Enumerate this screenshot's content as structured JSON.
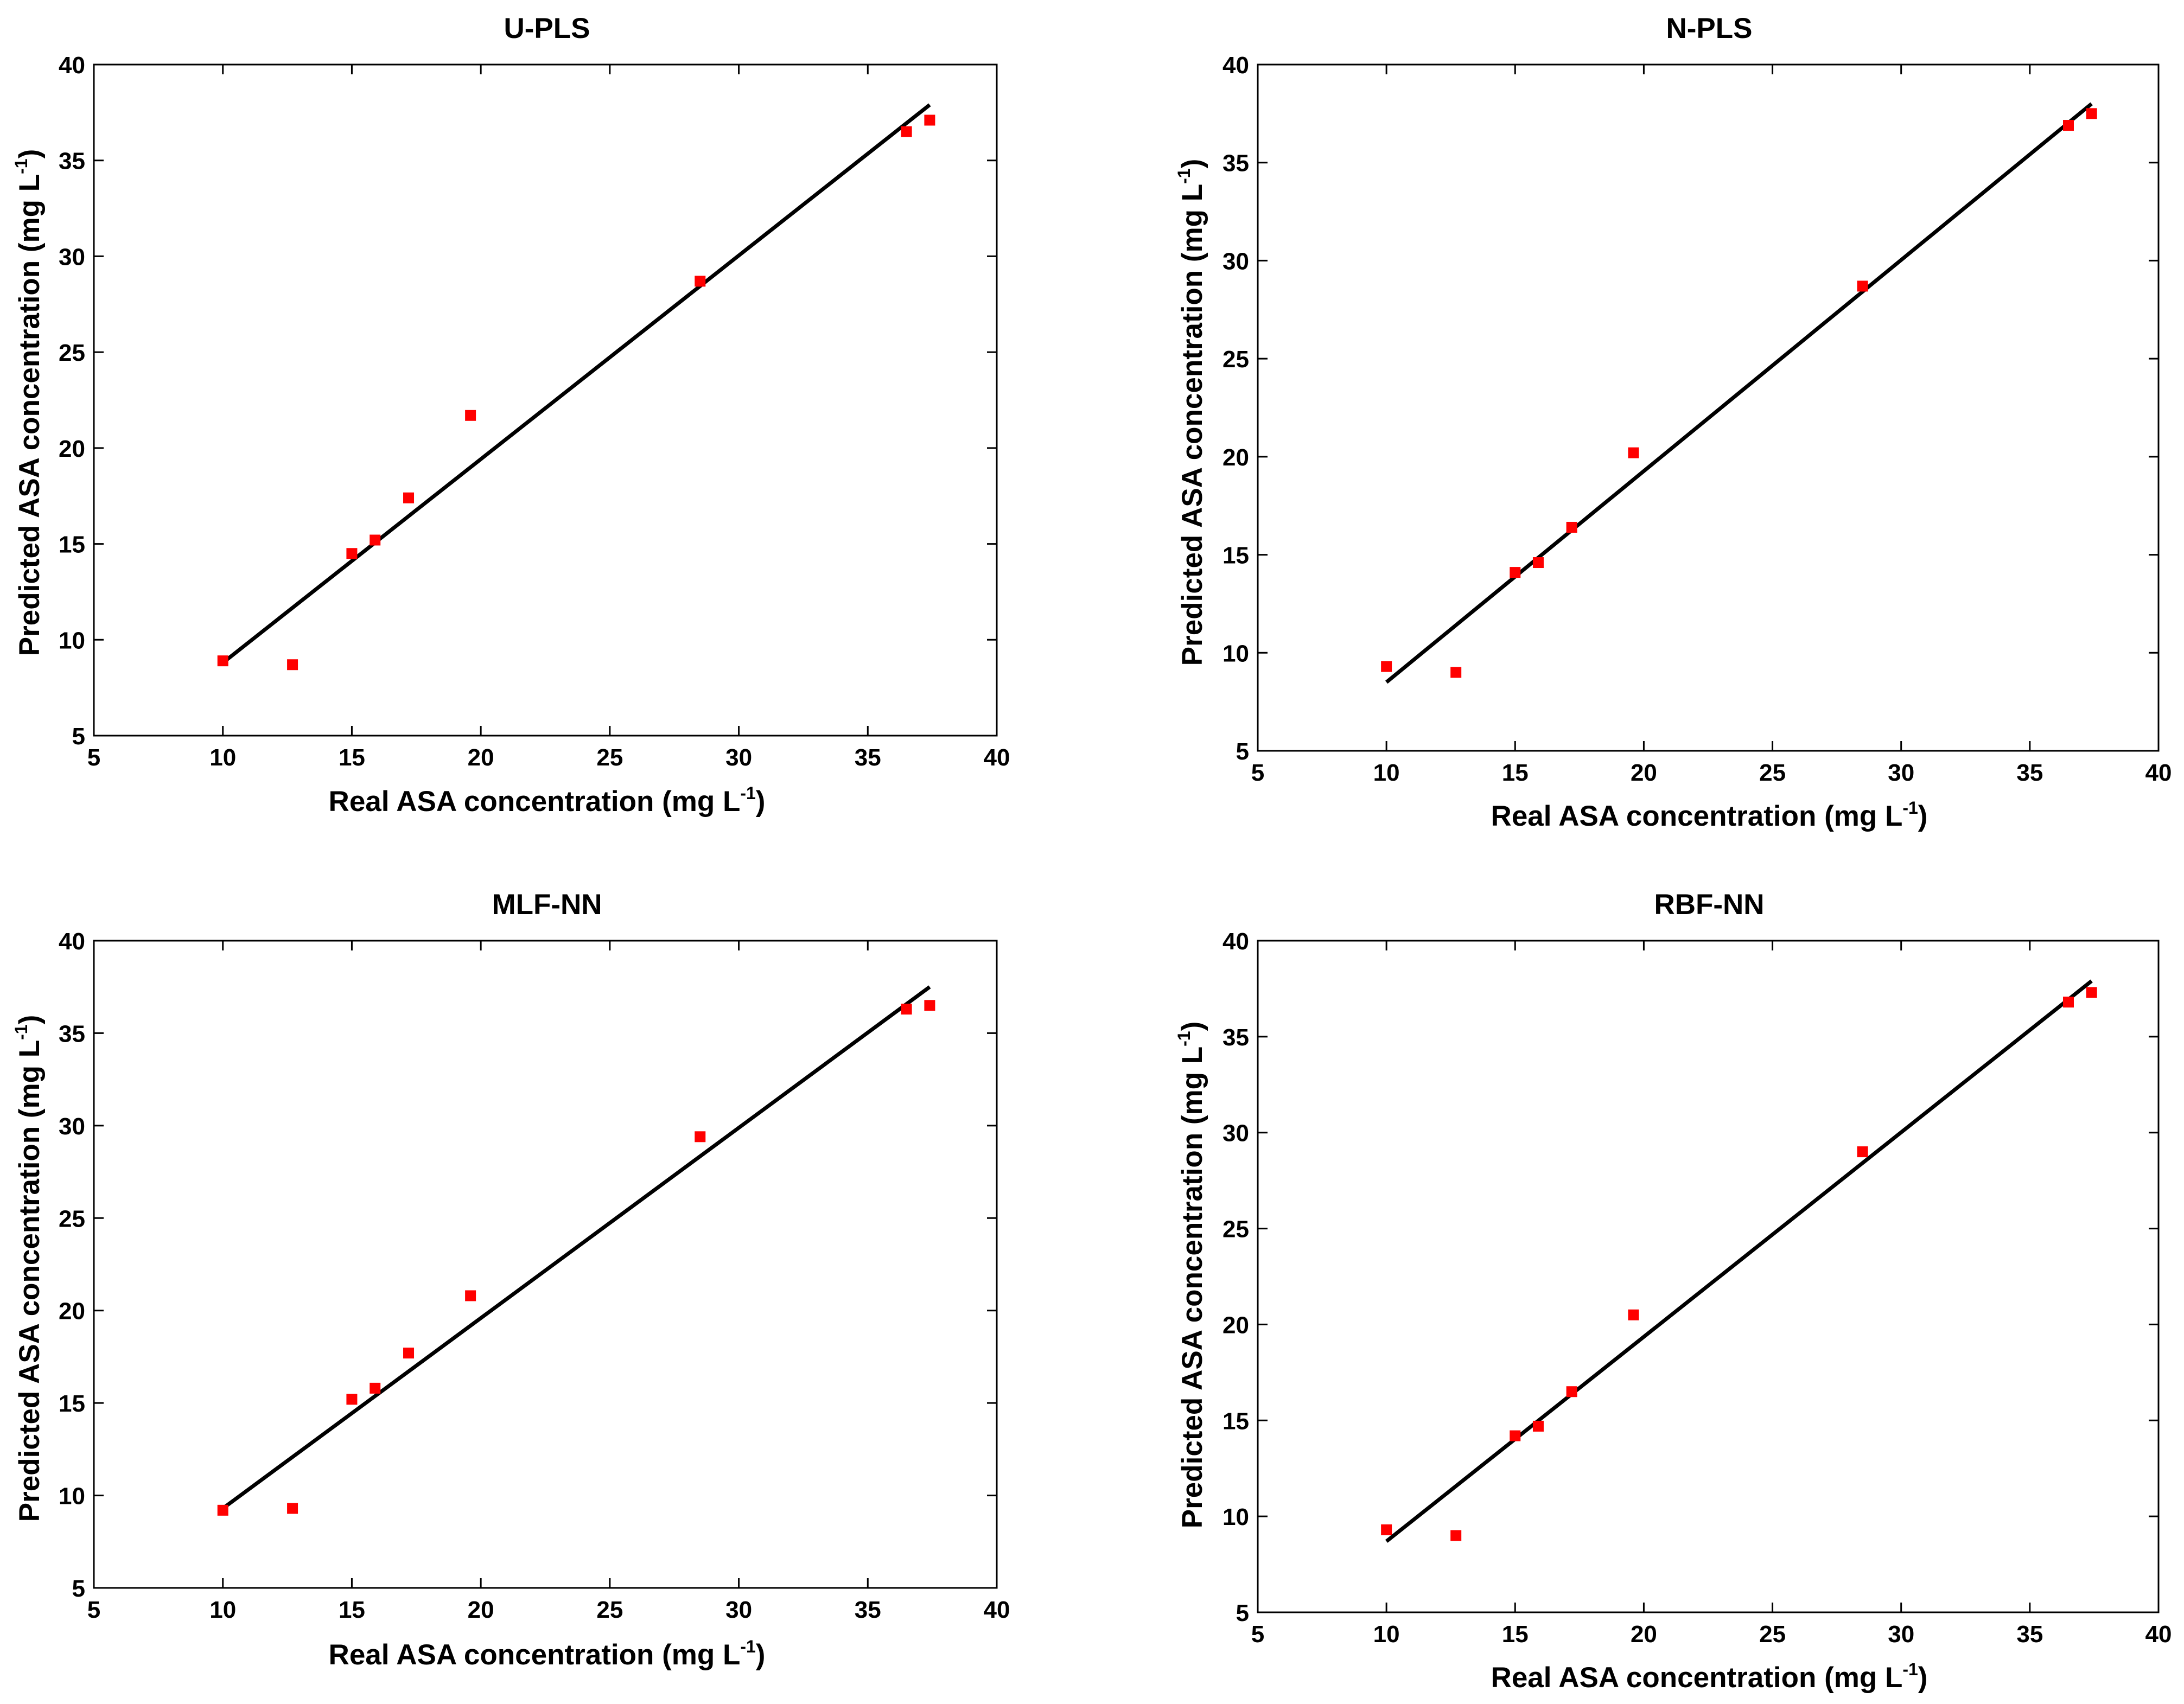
{
  "figure": {
    "colors": {
      "points": "#ff0000",
      "line": "#000000",
      "axes": "#000000",
      "background": "#ffffff"
    }
  },
  "chart_data": [
    {
      "type": "scatter",
      "title": "U-PLS",
      "xlabel": "Real ASA concentration (mg L",
      "xlabel_sup": "-1",
      "xlabel_end": ")",
      "ylabel": "Predicted ASA concentration (mg L",
      "ylabel_sup": "-1",
      "ylabel_end": ")",
      "xlim": [
        5,
        40
      ],
      "ylim": [
        5,
        40
      ],
      "xticks": [
        5,
        10,
        15,
        20,
        25,
        30,
        35,
        40
      ],
      "yticks": [
        5,
        10,
        15,
        20,
        25,
        30,
        35,
        40
      ],
      "points": {
        "x": [
          10.0,
          12.7,
          15.0,
          15.9,
          17.2,
          19.6,
          28.5,
          36.5,
          37.4
        ],
        "y": [
          8.9,
          8.7,
          14.5,
          15.2,
          17.4,
          21.7,
          28.7,
          36.5,
          37.1
        ]
      },
      "fit_line": {
        "x": [
          10.0,
          37.4
        ],
        "y": [
          8.8,
          37.9
        ]
      }
    },
    {
      "type": "scatter",
      "title": "N-PLS",
      "xlabel": "Real ASA concentration (mg L",
      "xlabel_sup": "-1",
      "xlabel_end": ")",
      "ylabel": "Predicted ASA concentration (mg L",
      "ylabel_sup": "-1",
      "ylabel_end": ")",
      "xlim": [
        5,
        40
      ],
      "ylim": [
        5,
        40
      ],
      "xticks": [
        5,
        10,
        15,
        20,
        25,
        30,
        35,
        40
      ],
      "yticks": [
        5,
        10,
        15,
        20,
        25,
        30,
        35,
        40
      ],
      "points": {
        "x": [
          10.0,
          12.7,
          15.0,
          15.9,
          17.2,
          19.6,
          28.5,
          36.5,
          37.4
        ],
        "y": [
          9.3,
          9.0,
          14.1,
          14.6,
          16.4,
          20.2,
          28.7,
          36.9,
          37.5
        ]
      },
      "fit_line": {
        "x": [
          10.0,
          37.4
        ],
        "y": [
          8.5,
          38.0
        ]
      }
    },
    {
      "type": "scatter",
      "title": "MLF-NN",
      "xlabel": "Real ASA concentration (mg L",
      "xlabel_sup": "-1",
      "xlabel_end": ")",
      "ylabel": "Predicted ASA concentration (mg L",
      "ylabel_sup": "-1",
      "ylabel_end": ")",
      "xlim": [
        5,
        40
      ],
      "ylim": [
        5,
        40
      ],
      "xticks": [
        5,
        10,
        15,
        20,
        25,
        30,
        35,
        40
      ],
      "yticks": [
        5,
        10,
        15,
        20,
        25,
        30,
        35,
        40
      ],
      "points": {
        "x": [
          10.0,
          12.7,
          15.0,
          15.9,
          17.2,
          19.6,
          28.5,
          36.5,
          37.4
        ],
        "y": [
          9.2,
          9.3,
          15.2,
          15.8,
          17.7,
          20.8,
          29.4,
          36.3,
          36.5
        ]
      },
      "fit_line": {
        "x": [
          10.0,
          37.4
        ],
        "y": [
          9.3,
          37.5
        ]
      }
    },
    {
      "type": "scatter",
      "title": "RBF-NN",
      "xlabel": "Real ASA concentration (mg L",
      "xlabel_sup": "-1",
      "xlabel_end": ")",
      "ylabel": "Predicted ASA concentration (mg L",
      "ylabel_sup": "-1",
      "ylabel_end": ")",
      "xlim": [
        5,
        40
      ],
      "ylim": [
        5,
        40
      ],
      "xticks": [
        5,
        10,
        15,
        20,
        25,
        30,
        35,
        40
      ],
      "yticks": [
        5,
        10,
        15,
        20,
        25,
        30,
        35,
        40
      ],
      "points": {
        "x": [
          10.0,
          12.7,
          15.0,
          15.9,
          17.2,
          19.6,
          28.5,
          36.5,
          37.4
        ],
        "y": [
          9.3,
          9.0,
          14.2,
          14.7,
          16.5,
          20.5,
          29.0,
          36.8,
          37.3
        ]
      },
      "fit_line": {
        "x": [
          10.0,
          37.4
        ],
        "y": [
          8.7,
          37.9
        ]
      }
    }
  ]
}
